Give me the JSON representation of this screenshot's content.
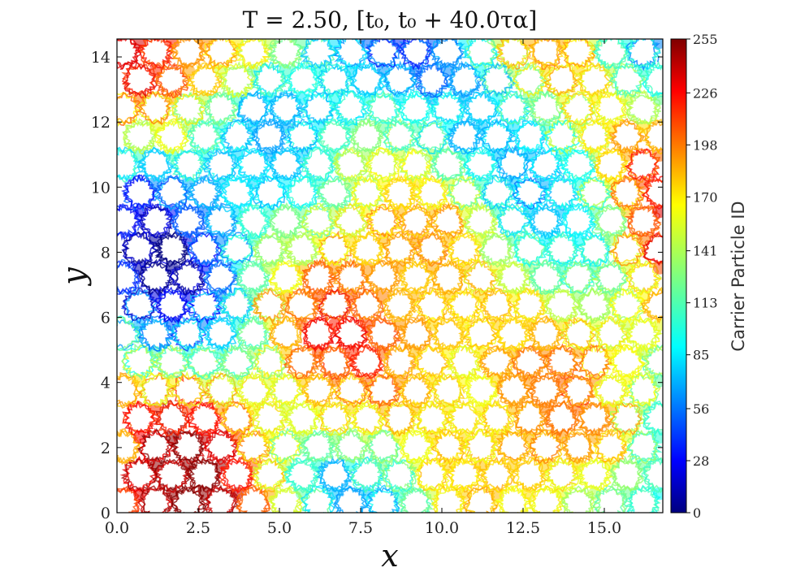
{
  "chart_data": {
    "type": "scatter",
    "title": "T = 2.50,  [t₀, t₀ + 40.0τα]",
    "xlabel": "x",
    "ylabel": "y",
    "xlim": [
      0,
      16.8
    ],
    "ylim": [
      0,
      14.55
    ],
    "xticks": [
      0.0,
      2.5,
      5.0,
      7.5,
      10.0,
      12.5,
      15.0
    ],
    "xtick_labels": [
      "0.0",
      "2.5",
      "5.0",
      "7.5",
      "10.0",
      "12.5",
      "15.0"
    ],
    "yticks": [
      0,
      2,
      4,
      6,
      8,
      10,
      12,
      14
    ],
    "ytick_labels": [
      "0",
      "2",
      "4",
      "6",
      "8",
      "10",
      "12",
      "14"
    ],
    "lattice": {
      "description": "hexagonal lattice of cage centres; carrier trajectories wander in the gaps",
      "spacing": 1.0,
      "rows": 17,
      "cols": 17
    },
    "colorbar": {
      "label": "Carrier Particle ID",
      "colormap": "jet",
      "min": 0,
      "max": 255,
      "ticks": [
        0,
        28,
        56,
        85,
        113,
        141,
        170,
        198,
        226,
        255
      ],
      "tick_labels": [
        "0",
        "28",
        "56",
        "85",
        "113",
        "141",
        "170",
        "198",
        "226",
        "255"
      ]
    },
    "grid": false
  }
}
